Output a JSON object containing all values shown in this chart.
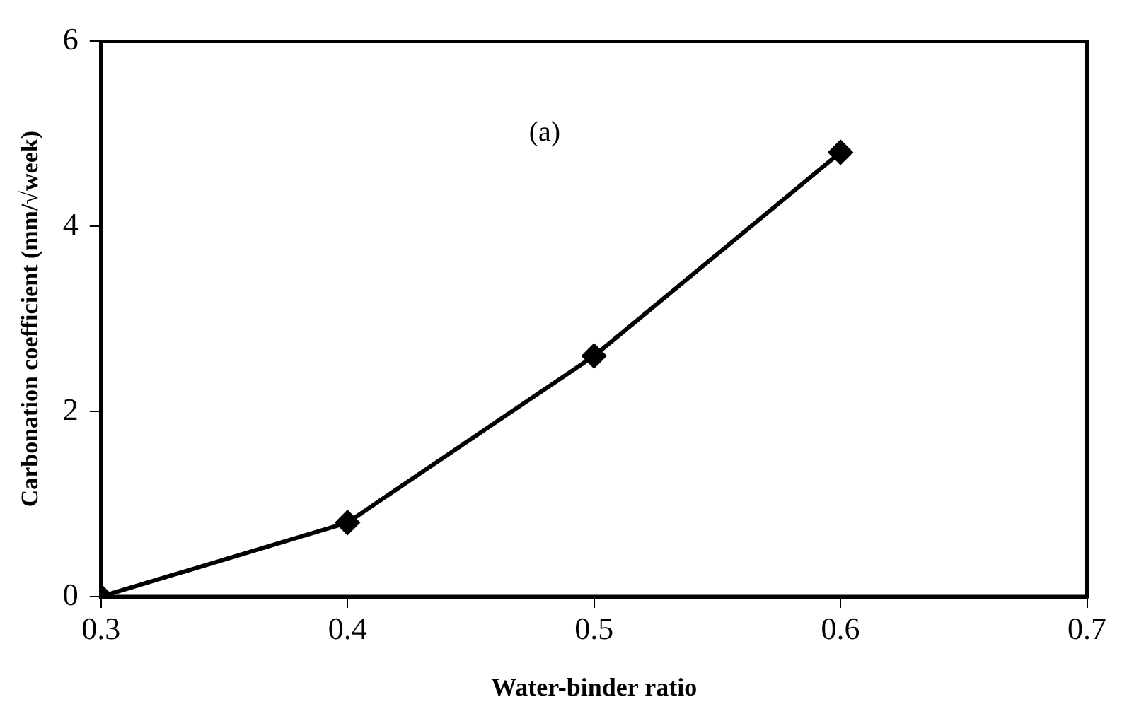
{
  "chart_data": {
    "type": "line",
    "xlabel": "Water-binder ratio",
    "ylabel": "Carbonation coefficient (mm/√week)",
    "x": [
      0.3,
      0.4,
      0.5,
      0.6
    ],
    "series": [
      {
        "color": "#000000",
        "values": [
          0,
          0.8,
          2.6,
          4.8
        ]
      }
    ],
    "xlim": [
      0.3,
      0.7
    ],
    "xticks": [
      0.3,
      0.4,
      0.5,
      0.6,
      0.7
    ],
    "ylim": [
      0,
      6
    ],
    "yticks": [
      0,
      2,
      4,
      6
    ],
    "grid": false,
    "legend": false,
    "marker": "diamond",
    "line_style": "solid",
    "annotations": [
      "(a)"
    ]
  }
}
